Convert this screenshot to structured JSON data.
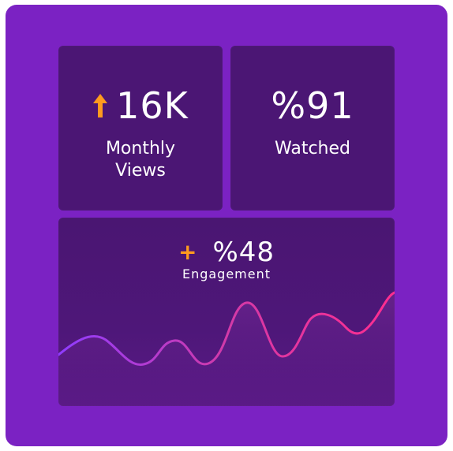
{
  "stats": {
    "views": {
      "value": "16K",
      "label": "Monthly Views",
      "trend": "up"
    },
    "watched": {
      "value": "%91",
      "label": "Watched"
    },
    "engagement": {
      "sign": "+",
      "value": "%48",
      "label": "Engagement"
    }
  },
  "icons": {
    "views_trend": "arrow-up-icon",
    "engagement_trend": "plus-icon"
  },
  "colors": {
    "background": "#7b22c3",
    "card": "#4b1674",
    "accent_orange": "#ff9a1f",
    "wave_start": "#9b3cff",
    "wave_end": "#ff2d8f"
  }
}
